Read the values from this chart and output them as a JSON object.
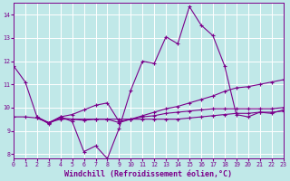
{
  "background_color": "#c0e8e8",
  "grid_color": "#ffffff",
  "line_color": "#7b008b",
  "x_min": 0,
  "x_max": 23,
  "y_min": 7.8,
  "y_max": 14.5,
  "xlabel": "Windchill (Refroidissement éolien,°C)",
  "lines": [
    {
      "x": [
        0,
        1,
        2,
        3,
        4,
        5,
        6,
        7,
        8,
        9,
        10,
        11,
        12,
        13,
        14,
        15,
        16,
        17,
        18,
        19,
        20,
        21,
        22,
        23
      ],
      "y": [
        11.8,
        11.1,
        9.6,
        9.3,
        9.6,
        9.4,
        8.1,
        8.35,
        7.8,
        9.1,
        10.75,
        12.0,
        11.9,
        13.05,
        12.75,
        14.35,
        13.55,
        13.1,
        11.8,
        9.7,
        9.6,
        9.8,
        9.75,
        9.9
      ]
    },
    {
      "x": [
        0,
        1,
        2,
        3,
        4,
        5,
        6,
        7,
        8,
        9,
        10,
        11,
        12,
        13,
        14,
        15,
        16,
        17,
        18,
        19,
        20,
        21,
        22,
        23
      ],
      "y": [
        9.6,
        9.6,
        9.55,
        9.35,
        9.5,
        9.5,
        9.5,
        9.5,
        9.5,
        9.5,
        9.5,
        9.6,
        9.65,
        9.75,
        9.8,
        9.85,
        9.9,
        9.95,
        9.95,
        9.95,
        9.95,
        9.95,
        9.95,
        10.0
      ]
    },
    {
      "x": [
        2,
        3,
        4,
        5,
        6,
        7,
        8,
        9,
        10,
        11,
        12,
        13,
        14,
        15,
        16,
        17,
        18,
        19,
        20,
        21,
        22,
        23
      ],
      "y": [
        9.55,
        9.35,
        9.6,
        9.7,
        9.9,
        10.1,
        10.2,
        9.4,
        9.5,
        9.65,
        9.8,
        9.95,
        10.05,
        10.2,
        10.35,
        10.5,
        10.7,
        10.85,
        10.9,
        11.0,
        11.1,
        11.2
      ]
    },
    {
      "x": [
        2,
        3,
        4,
        5,
        6,
        7,
        8,
        9,
        10,
        11,
        12,
        13,
        14,
        15,
        16,
        17,
        18,
        19,
        20,
        21,
        22,
        23
      ],
      "y": [
        9.6,
        9.35,
        9.55,
        9.5,
        9.45,
        9.5,
        9.5,
        9.35,
        9.5,
        9.5,
        9.5,
        9.5,
        9.5,
        9.55,
        9.6,
        9.65,
        9.7,
        9.75,
        9.75,
        9.8,
        9.8,
        9.85
      ]
    }
  ],
  "yticks": [
    8,
    9,
    10,
    11,
    12,
    13,
    14
  ],
  "xticks": [
    0,
    1,
    2,
    3,
    4,
    5,
    6,
    7,
    8,
    9,
    10,
    11,
    12,
    13,
    14,
    15,
    16,
    17,
    18,
    19,
    20,
    21,
    22,
    23
  ],
  "tick_fontsize": 4.8,
  "xlabel_fontsize": 6.0,
  "marker": "+",
  "markersize": 3.5,
  "linewidth": 0.8,
  "markeredgewidth": 0.8
}
